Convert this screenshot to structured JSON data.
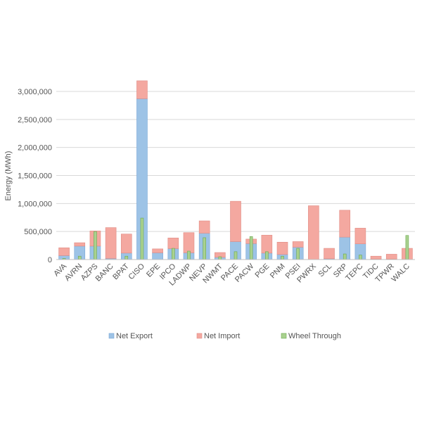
{
  "chart_data": {
    "type": "bar",
    "ylabel": "Energy (MWh)",
    "ylim": [
      0,
      3000000
    ],
    "yticks": [
      0,
      500000,
      1000000,
      1500000,
      2000000,
      2500000,
      3000000
    ],
    "ytick_labels": [
      "0",
      "500,000",
      "1,000,000",
      "1,500,000",
      "2,000,000",
      "2,500,000",
      "3,000,000"
    ],
    "grid": true,
    "legend_position": "bottom",
    "categories": [
      "AVA",
      "AVRN",
      "AZPS",
      "BANC",
      "BPAT",
      "CISO",
      "EPE",
      "IPCO",
      "LADWP",
      "NEVP",
      "NWMT",
      "PACE",
      "PACW",
      "PGE",
      "PNM",
      "PSEI",
      "PWRX",
      "SCL",
      "SRP",
      "TEPC",
      "TIDC",
      "TPWR",
      "WALC"
    ],
    "series": [
      {
        "name": "Net Export",
        "color": "#9dc3e6",
        "edge": "#7aa7d6",
        "values": [
          70000,
          240000,
          240000,
          20000,
          115000,
          2870000,
          120000,
          195000,
          120000,
          470000,
          40000,
          320000,
          285000,
          115000,
          90000,
          220000,
          0,
          15000,
          400000,
          280000,
          10000,
          10000,
          0
        ]
      },
      {
        "name": "Net Import",
        "color": "#f4a8a0",
        "edge": "#e08c84",
        "values": [
          140000,
          60000,
          270000,
          550000,
          340000,
          320000,
          70000,
          190000,
          360000,
          220000,
          85000,
          720000,
          80000,
          320000,
          220000,
          100000,
          960000,
          185000,
          480000,
          280000,
          50000,
          85000,
          200000
        ]
      },
      {
        "name": "Wheel Through",
        "color": "#a9d18e",
        "edge": "#6aa84f",
        "values": [
          20000,
          60000,
          500000,
          0,
          60000,
          740000,
          0,
          200000,
          150000,
          390000,
          50000,
          140000,
          410000,
          140000,
          60000,
          200000,
          0,
          0,
          100000,
          80000,
          0,
          0,
          430000
        ]
      }
    ]
  }
}
